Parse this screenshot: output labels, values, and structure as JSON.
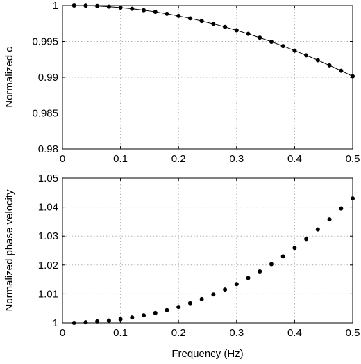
{
  "chart_data": [
    {
      "type": "line",
      "title": "",
      "xlabel": "",
      "ylabel": "Normalized c",
      "xlim": [
        0,
        0.5
      ],
      "ylim": [
        0.98,
        1
      ],
      "x_ticks": [
        0,
        0.1,
        0.2,
        0.3,
        0.4,
        0.5
      ],
      "x_tick_labels": [
        "0",
        "0.1",
        "0.2",
        "0.3",
        "0.4",
        "0.5"
      ],
      "y_ticks": [
        0.98,
        0.985,
        0.99,
        0.995,
        1
      ],
      "y_tick_labels": [
        "0.98",
        "0.985",
        "0.99",
        "0.995",
        "1"
      ],
      "grid": true,
      "legend": "none",
      "series": [
        {
          "style": "line-with-dot-markers",
          "x": [
            0.02,
            0.04,
            0.06,
            0.08,
            0.1,
            0.12,
            0.14,
            0.16,
            0.18,
            0.2,
            0.22,
            0.24,
            0.26,
            0.28,
            0.3,
            0.32,
            0.34,
            0.36,
            0.38,
            0.4,
            0.42,
            0.44,
            0.46,
            0.48,
            0.5
          ],
          "y": [
            1.0,
            0.99998,
            0.99993,
            0.99984,
            0.99971,
            0.99955,
            0.99935,
            0.99912,
            0.99885,
            0.99855,
            0.99821,
            0.99785,
            0.99745,
            0.99701,
            0.99655,
            0.99605,
            0.99552,
            0.99495,
            0.99436,
            0.99373,
            0.99307,
            0.99238,
            0.99166,
            0.99091,
            0.99013
          ]
        }
      ]
    },
    {
      "type": "scatter",
      "title": "",
      "xlabel": "Frequency (Hz)",
      "ylabel": "Normalized phase velocity",
      "xlim": [
        0,
        0.5
      ],
      "ylim": [
        1,
        1.05
      ],
      "x_ticks": [
        0,
        0.1,
        0.2,
        0.3,
        0.4,
        0.5
      ],
      "x_tick_labels": [
        "0",
        "0.1",
        "0.2",
        "0.3",
        "0.4",
        "0.5"
      ],
      "y_ticks": [
        1,
        1.01,
        1.02,
        1.03,
        1.04,
        1.05
      ],
      "y_tick_labels": [
        "1",
        "1.01",
        "1.02",
        "1.03",
        "1.04",
        "1.05"
      ],
      "grid": true,
      "legend": "none",
      "series": [
        {
          "style": "dot-markers",
          "x": [
            0.02,
            0.04,
            0.06,
            0.08,
            0.1,
            0.12,
            0.14,
            0.16,
            0.18,
            0.2,
            0.22,
            0.24,
            0.26,
            0.28,
            0.3,
            0.32,
            0.34,
            0.36,
            0.38,
            0.4,
            0.42,
            0.44,
            0.46,
            0.48,
            0.5
          ],
          "y": [
            1.0,
            1.0002,
            1.0005,
            1.0008,
            1.0013,
            1.0019,
            1.0026,
            1.0034,
            1.0044,
            1.0055,
            1.0068,
            1.0082,
            1.0098,
            1.0115,
            1.0134,
            1.0155,
            1.0178,
            1.0203,
            1.023,
            1.0259,
            1.029,
            1.0323,
            1.0358,
            1.0395,
            1.043
          ]
        }
      ]
    }
  ]
}
